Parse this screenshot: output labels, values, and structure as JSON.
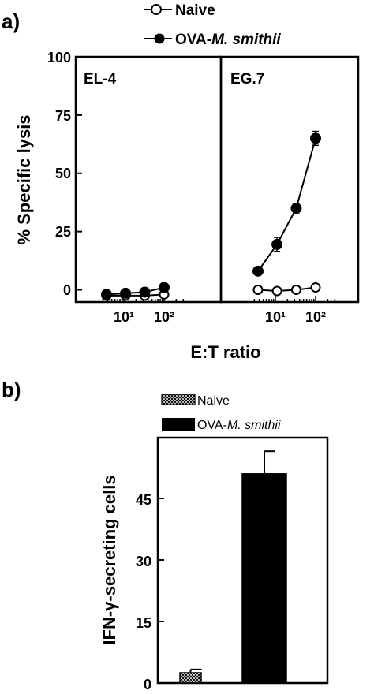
{
  "panel_a": {
    "label": "a)",
    "legend": [
      {
        "name": "Naive",
        "marker": "open-circle"
      },
      {
        "name_prefix": "OVA-",
        "name_italic": "M. smithii",
        "marker": "filled-circle"
      }
    ]
  },
  "panel_b": {
    "label": "b)",
    "legend": [
      {
        "name": "Naive",
        "swatch": "crosshatch"
      },
      {
        "name_prefix": "OVA-",
        "name_italic": "M. smithii",
        "swatch": "solid-black"
      }
    ]
  },
  "chart_data": [
    {
      "type": "line",
      "panel": "a",
      "subplots": [
        "EL-4",
        "EG.7"
      ],
      "ylabel": "% Specific lysis",
      "xlabel": "E:T ratio",
      "xscale": "log",
      "ylim": [
        -3,
        100
      ],
      "yticks": [
        0,
        25,
        50,
        75,
        100
      ],
      "xtick_labels": [
        "10¹",
        "10²"
      ],
      "series": [
        {
          "name": "Naive",
          "subplot": "EL-4",
          "x": [
            3.7,
            11,
            33,
            100
          ],
          "y": [
            -2.5,
            -2.5,
            -2.5,
            -2
          ],
          "err": [
            0.5,
            0.5,
            0.5,
            0.5
          ]
        },
        {
          "name": "OVA-M. smithii",
          "subplot": "EL-4",
          "x": [
            3.7,
            11,
            33,
            100
          ],
          "y": [
            -2,
            -1.5,
            -1,
            1
          ],
          "err": [
            0.5,
            0.5,
            0.5,
            1
          ]
        },
        {
          "name": "Naive",
          "subplot": "EG.7",
          "x": [
            3.7,
            11,
            33,
            100
          ],
          "y": [
            0,
            -0.5,
            0,
            1
          ],
          "err": [
            0.5,
            0.5,
            0.5,
            0.5
          ]
        },
        {
          "name": "OVA-M. smithii",
          "subplot": "EG.7",
          "x": [
            3.7,
            11,
            33,
            100
          ],
          "y": [
            8,
            19.5,
            35,
            65
          ],
          "err": [
            1.5,
            3,
            2,
            3
          ]
        }
      ]
    },
    {
      "type": "bar",
      "panel": "b",
      "categories": [
        "Naive",
        "OVA-M. smithii"
      ],
      "values": [
        2.5,
        51
      ],
      "errors": [
        0.8,
        5.5
      ],
      "ylabel": "IFN-γ-secreting cells",
      "ylim": [
        0,
        60
      ],
      "yticks": [
        0,
        15,
        30,
        45
      ]
    }
  ]
}
